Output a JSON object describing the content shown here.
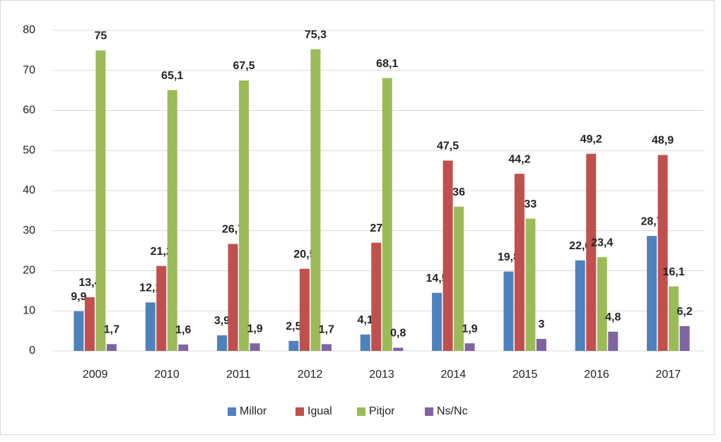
{
  "chart_data": {
    "type": "bar",
    "categories": [
      "2009",
      "2010",
      "2011",
      "2012",
      "2013",
      "2014",
      "2015",
      "2016",
      "2017"
    ],
    "series": [
      {
        "name": "Millor",
        "color": "#4f81bd",
        "values": [
          9.9,
          12.1,
          3.9,
          2.5,
          4.1,
          14.5,
          19.8,
          22.6,
          28.7
        ],
        "value_labels": [
          "9,9",
          "12,1",
          "3,9",
          "2,5",
          "4,1",
          "14,5",
          "19,8",
          "22,6",
          "28,7"
        ]
      },
      {
        "name": "Igual",
        "color": "#c0504d",
        "values": [
          13.4,
          21.2,
          26.7,
          20.5,
          27,
          47.5,
          44.2,
          49.2,
          48.9
        ],
        "value_labels": [
          "13,4",
          "21,2",
          "26,7",
          "20,5",
          "27",
          "47,5",
          "44,2",
          "49,2",
          "48,9"
        ]
      },
      {
        "name": "Pitjor",
        "color": "#9bbb59",
        "values": [
          75,
          65.1,
          67.5,
          75.3,
          68.1,
          36,
          33,
          23.4,
          16.1
        ],
        "value_labels": [
          "75",
          "65,1",
          "67,5",
          "75,3",
          "68,1",
          "36",
          "33",
          "23,4",
          "16,1"
        ]
      },
      {
        "name": "Ns/Nc",
        "color": "#8064a2",
        "values": [
          1.7,
          1.6,
          1.9,
          1.7,
          0.8,
          1.9,
          3,
          4.8,
          6.2
        ],
        "value_labels": [
          "1,7",
          "1,6",
          "1,9",
          "1,7",
          "0,8",
          "1,9",
          "3",
          "4,8",
          "6,2"
        ]
      }
    ],
    "ylim": [
      0,
      80
    ],
    "yticks": [
      0,
      10,
      20,
      30,
      40,
      50,
      60,
      70,
      80
    ],
    "grid": true,
    "legend": "bottom"
  }
}
